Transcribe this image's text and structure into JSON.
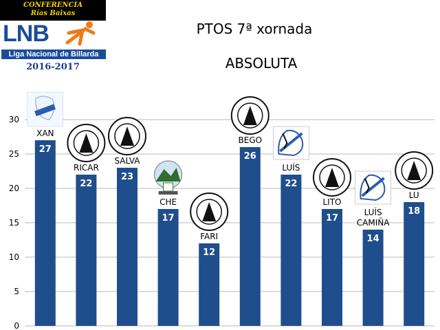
{
  "logo": {
    "conference_line1": "CONFERENCIA",
    "conference_line2": "Rías Baixas",
    "letters": "LNB",
    "name": "Liga Nacional de Billarda",
    "season": "2016-2017"
  },
  "chart_data": {
    "type": "bar",
    "title": "PTOS 7ª xornada",
    "subtitle": "ABSOLUTA",
    "categories": [
      "XAN",
      "RICAR",
      "SALVA",
      "CHE",
      "FARI",
      "BEGO",
      "LUÍS",
      "LITO",
      "LUÍS CAMIÑA",
      "LU"
    ],
    "values": [
      27,
      22,
      23,
      17,
      12,
      26,
      22,
      17,
      14,
      18
    ],
    "ylim": [
      0,
      30
    ],
    "yticks": [
      0,
      5,
      10,
      15,
      20,
      25,
      30
    ],
    "grid": true,
    "legend": "none",
    "bar_color": "#1f4e8c",
    "grid_color": "#b8b8b8",
    "club_logos": [
      "lnb-badge",
      "correderas-seal",
      "correderas-seal",
      "pontevedra-badge",
      "correderas-seal",
      "correderas-seal",
      "galicia-map-badge",
      "correderas-seal",
      "galicia-map-badge",
      "correderas-seal"
    ]
  }
}
